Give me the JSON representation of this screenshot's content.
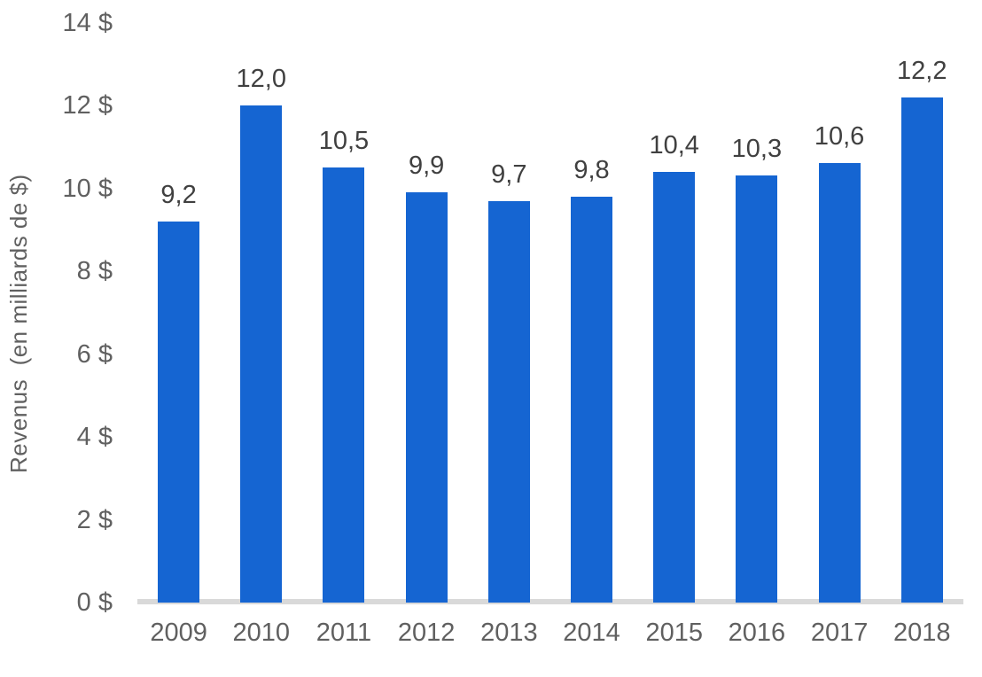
{
  "chart_data": {
    "type": "bar",
    "title": "",
    "xlabel": "",
    "ylabel": "Revenus  (en milliards de $)",
    "categories": [
      "2009",
      "2010",
      "2011",
      "2012",
      "2013",
      "2014",
      "2015",
      "2016",
      "2017",
      "2018"
    ],
    "values": [
      9.2,
      12.0,
      10.5,
      9.9,
      9.7,
      9.8,
      10.4,
      10.3,
      10.6,
      12.2
    ],
    "value_labels": [
      "9,2",
      "12,0",
      "10,5",
      "9,9",
      "9,7",
      "9,8",
      "10,4",
      "10,3",
      "10,6",
      "12,2"
    ],
    "yticks": [
      {
        "value": 0,
        "label": "0 $"
      },
      {
        "value": 2,
        "label": "2 $"
      },
      {
        "value": 4,
        "label": "4 $"
      },
      {
        "value": 6,
        "label": "6 $"
      },
      {
        "value": 8,
        "label": "8 $"
      },
      {
        "value": 10,
        "label": "10 $"
      },
      {
        "value": 12,
        "label": "12 $"
      },
      {
        "value": 14,
        "label": "14 $"
      }
    ],
    "ylim": [
      0,
      14
    ],
    "grid": false,
    "legend": "none",
    "decimal_separator": ",",
    "colors": {
      "bar": "#1565d2",
      "axis_line": "#d9d9d9",
      "tick_text": "#606060",
      "value_text": "#404040",
      "background": "#ffffff"
    }
  }
}
